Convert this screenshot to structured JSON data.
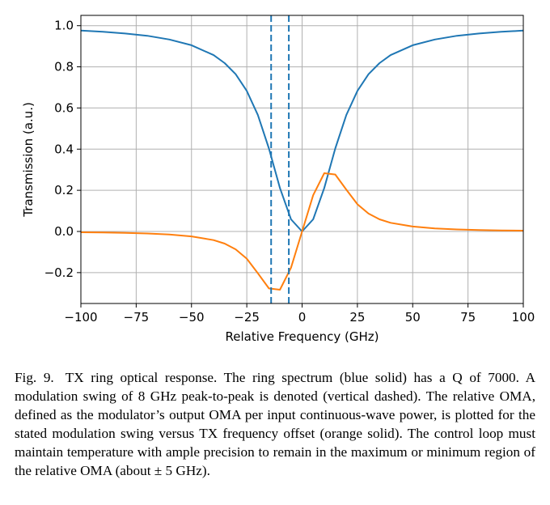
{
  "chart_data": {
    "type": "line",
    "title": "",
    "xlabel": "Relative Frequency (GHz)",
    "ylabel": "Transmission (a.u.)",
    "xlim": [
      -100,
      100
    ],
    "ylim": [
      -0.35,
      1.05
    ],
    "xticks": [
      -100,
      -75,
      -50,
      -25,
      0,
      25,
      50,
      75,
      100
    ],
    "xtick_labels": [
      "−100",
      "−75",
      "−50",
      "−25",
      "0",
      "25",
      "50",
      "75",
      "100"
    ],
    "yticks": [
      -0.2,
      0.0,
      0.2,
      0.4,
      0.6,
      0.8,
      1.0
    ],
    "ytick_labels": [
      "−0.2",
      "0.0",
      "0.2",
      "0.4",
      "0.6",
      "0.8",
      "1.0"
    ],
    "grid": true,
    "legend": "none",
    "series": [
      {
        "color": "#1f77b4",
        "style": "solid",
        "x": [
          -100,
          -90,
          -80,
          -70,
          -60,
          -50,
          -40,
          -35,
          -30,
          -25,
          -20,
          -15,
          -10,
          -5,
          0,
          5,
          10,
          15,
          20,
          25,
          30,
          35,
          40,
          50,
          60,
          70,
          80,
          90,
          100
        ],
        "y": [
          0.976,
          0.97,
          0.962,
          0.951,
          0.933,
          0.905,
          0.857,
          0.818,
          0.764,
          0.683,
          0.566,
          0.403,
          0.211,
          0.059,
          0.0,
          0.059,
          0.211,
          0.403,
          0.566,
          0.683,
          0.764,
          0.818,
          0.857,
          0.905,
          0.933,
          0.951,
          0.962,
          0.97,
          0.976
        ]
      },
      {
        "color": "#ff7f0e",
        "style": "solid",
        "x": [
          -100,
          -90,
          -80,
          -70,
          -60,
          -50,
          -40,
          -35,
          -30,
          -25,
          -20,
          -15,
          -10,
          -5,
          0,
          5,
          10,
          15,
          20,
          25,
          30,
          35,
          40,
          50,
          60,
          70,
          80,
          90,
          100
        ],
        "y": [
          -0.004,
          -0.005,
          -0.007,
          -0.01,
          -0.015,
          -0.024,
          -0.042,
          -0.059,
          -0.087,
          -0.132,
          -0.203,
          -0.277,
          -0.283,
          -0.176,
          0.0,
          0.176,
          0.283,
          0.277,
          0.203,
          0.132,
          0.087,
          0.059,
          0.042,
          0.024,
          0.015,
          0.01,
          0.007,
          0.005,
          0.004
        ]
      }
    ],
    "vlines": [
      {
        "x": -14,
        "color": "#1f77b4",
        "style": "dashed"
      },
      {
        "x": -6,
        "color": "#1f77b4",
        "style": "dashed"
      }
    ]
  },
  "caption": {
    "number": "Fig. 9.",
    "text": "TX ring optical response. The ring spectrum (blue solid) has a Q of 7000. A modulation swing of 8 GHz peak-to-peak is denoted (vertical dashed). The relative OMA, defined as the modulator’s output OMA per input continuous-wave power, is plotted for the stated modulation swing versus TX frequency offset (orange solid). The control loop must maintain temperature with ample precision to remain in the maximum or minimum region of the relative OMA (about ± 5 GHz)."
  }
}
